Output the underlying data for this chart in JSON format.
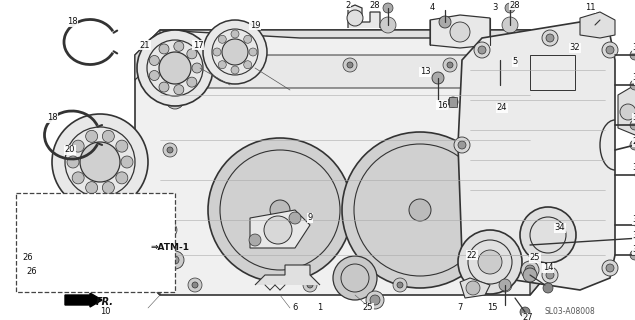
{
  "bg_color": "#ffffff",
  "diagram_code": "SL03-A08008",
  "lc": "#333333",
  "lc2": "#555555",
  "figsize": [
    6.35,
    3.2
  ],
  "dpi": 100
}
